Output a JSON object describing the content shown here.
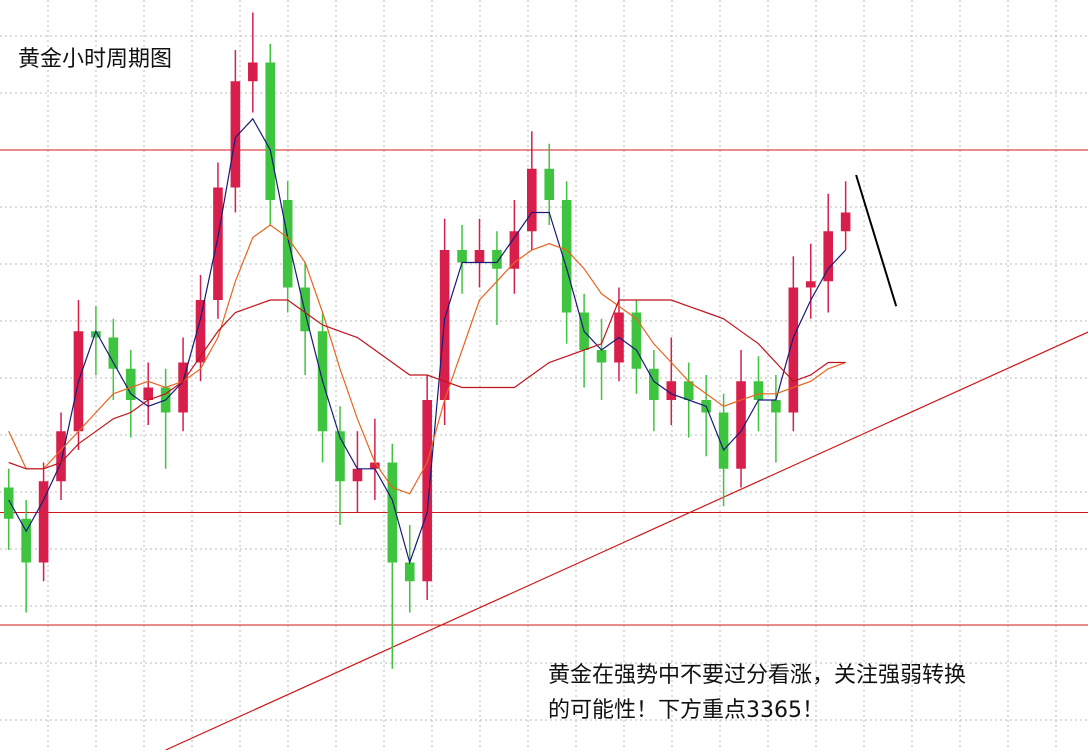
{
  "chart_data": {
    "type": "candlestick",
    "title": "黄金小时周期图",
    "annotation": [
      "黄金在强势中不要过分看涨，关注强弱转换",
      "的可能性！下方重点3365！"
    ],
    "up_color": "#d81e4a",
    "down_color": "#3fc43f",
    "grid": true,
    "xlim": [
      -0.5,
      61.9
    ],
    "ylim": [
      3320,
      3440
    ],
    "open": [
      3362,
      3357,
      3350,
      3363,
      3371,
      3387,
      3386,
      3381,
      3376,
      3378,
      3374,
      3382,
      3392,
      3410,
      3427,
      3430,
      3408,
      3394,
      3387,
      3371,
      3363,
      3365,
      3366,
      3350,
      3347,
      3376,
      3400,
      3398,
      3400,
      3397,
      3403,
      3413,
      3408,
      3390,
      3384,
      3382,
      3390,
      3381,
      3376,
      3379,
      3376,
      3374,
      3365,
      3379,
      3376,
      3374,
      3394,
      3395,
      3403
    ],
    "high": [
      3365,
      3360,
      3366,
      3374,
      3392,
      3391,
      3389,
      3384,
      3382,
      3381,
      3386,
      3396,
      3414,
      3432,
      3438,
      3433,
      3411,
      3398,
      3390,
      3375,
      3371,
      3373,
      3369,
      3356,
      3380,
      3405,
      3404,
      3405,
      3403,
      3408,
      3419,
      3417,
      3411,
      3393,
      3389,
      3394,
      3392,
      3384,
      3386,
      3382,
      3380,
      3377,
      3384,
      3383,
      3380,
      3399,
      3401,
      3409,
      3411
    ],
    "low": [
      3352,
      3342,
      3347,
      3360,
      3368,
      3380,
      3376,
      3370,
      3372,
      3365,
      3371,
      3379,
      3389,
      3406,
      3422,
      3404,
      3390,
      3380,
      3366,
      3356,
      3358,
      3360,
      3333,
      3342,
      3344,
      3372,
      3393,
      3394,
      3388,
      3393,
      3400,
      3404,
      3385,
      3378,
      3376,
      3379,
      3377,
      3371,
      3372,
      3370,
      3367,
      3359,
      3362,
      3371,
      3366,
      3371,
      3389,
      3390,
      3400
    ],
    "close": [
      3357,
      3350,
      3363,
      3371,
      3387,
      3386,
      3381,
      3376,
      3378,
      3374,
      3382,
      3392,
      3410,
      3427,
      3430,
      3408,
      3394,
      3387,
      3371,
      3363,
      3365,
      3366,
      3350,
      3347,
      3376,
      3400,
      3398,
      3400,
      3397,
      3403,
      3413,
      3408,
      3390,
      3384,
      3382,
      3390,
      3381,
      3376,
      3379,
      3376,
      3374,
      3365,
      3379,
      3376,
      3374,
      3394,
      3395,
      3403,
      3406
    ],
    "lines": [
      {
        "color": "#1a1a7a",
        "values": [
          3360,
          3355,
          3360,
          3366,
          3379,
          3387,
          3382,
          3377,
          3375,
          3376,
          3379,
          3389,
          3402,
          3418,
          3421,
          3416,
          3402,
          3390,
          3379,
          3370,
          3365,
          3365,
          3360,
          3350,
          3358,
          3389,
          3398,
          3398,
          3398,
          3402,
          3406,
          3406,
          3397,
          3387,
          3384,
          3386,
          3384,
          3379,
          3377,
          3376,
          3375,
          3368,
          3371,
          3376,
          3376,
          3386,
          3392,
          3397,
          3400
        ]
      },
      {
        "color": "#e8641e",
        "values": [
          3371,
          3365,
          3365,
          3368,
          3371,
          3374,
          3377,
          3378,
          3379,
          3378,
          3379,
          3381,
          3386,
          3395,
          3402,
          3404,
          3402,
          3398,
          3390,
          3381,
          3373,
          3366,
          3362,
          3361,
          3366,
          3376,
          3384,
          3392,
          3395,
          3398,
          3400,
          3401,
          3400,
          3397,
          3393,
          3391,
          3389,
          3385,
          3382,
          3379,
          3377,
          3375,
          3376,
          3377,
          3377,
          3378,
          3379,
          3381,
          3382
        ]
      },
      {
        "color": "#c0141e",
        "values": [
          3366,
          3365,
          3365,
          3366,
          3369,
          3371,
          3373,
          3374,
          3376,
          3377,
          3379,
          3383,
          3387,
          3390,
          3391,
          3392,
          3392,
          3390,
          3388,
          3387,
          3386,
          3384,
          3382,
          3380,
          3380,
          3379,
          3378,
          3378,
          3378,
          3378,
          3380,
          3382,
          3383,
          3384,
          3385,
          3392,
          3392,
          3392,
          3392,
          3391,
          3390,
          3389,
          3387,
          3385,
          3382,
          3379,
          3380,
          3382,
          3382
        ]
      }
    ],
    "levels": {
      "color": "#d01818",
      "values": [
        3416,
        3358,
        3340
      ]
    },
    "trendlines": [
      {
        "color": "#d01818",
        "x": [
          9,
          62
        ],
        "values": [
          3320,
          3387
        ]
      },
      {
        "color": "#000000",
        "x": [
          48.6,
          50.9
        ],
        "values": [
          3412,
          3391
        ]
      }
    ]
  }
}
